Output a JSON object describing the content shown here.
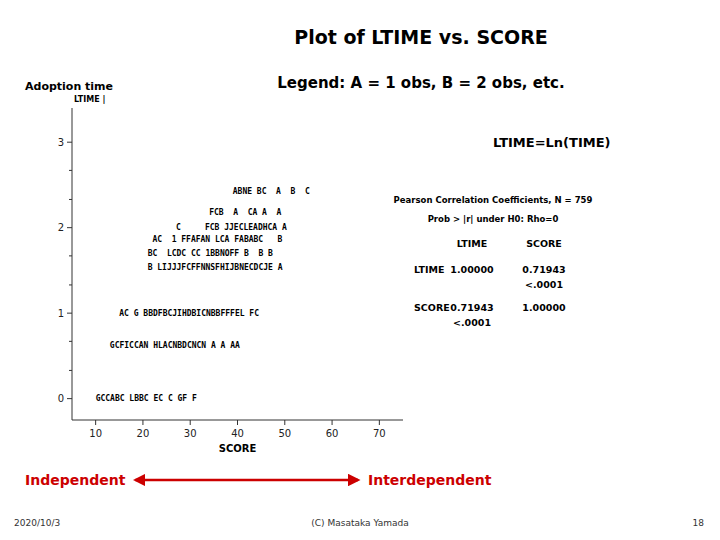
{
  "chart_data": {
    "type": "scatter",
    "title": "Plot of LTIME  vs.  SCORE",
    "subtitle": "Legend: A = 1 obs, B = 2 obs, etc.",
    "left_label": "Adoption time",
    "ylabel": "LTIME |",
    "xlabel": "SCORE",
    "xlim": [
      5,
      75
    ],
    "ylim": [
      -0.25,
      3.4
    ],
    "xticks": [
      10,
      20,
      30,
      40,
      50,
      60,
      70
    ],
    "yticks": [
      0,
      1,
      2,
      3
    ],
    "ytick_minor": [
      0.33,
      0.67,
      1.33,
      1.67,
      2.33,
      2.67
    ],
    "x": [
      10,
      13,
      15,
      21,
      21,
      22,
      27,
      34,
      39
    ],
    "values": [
      0.0,
      0.62,
      1.0,
      1.53,
      1.7,
      1.86,
      2.0,
      2.18,
      2.42
    ],
    "labels": [
      "GCCABC LBBC EC C GF F",
      "GCFICCAN HLACNBDCNCN A A AA",
      "AC G BBDFBCJIHDBICNBBFFFEL FC",
      "B LIJJJFCFFNNSFHIJBNECDCJE A",
      "BC  LCDC CC 1BBNOFF B  B B",
      "AC  1 FFAFAN LCA FABABC   B",
      "C     FCB JJECLEADHCA A",
      "FCB  A  CA A  A",
      "ABNE BC  A  B  C"
    ],
    "annotation": "LTIME=Ln(TIME)",
    "correlation": {
      "title": "Pearson Correlation Coefficients, N = 759",
      "subtitle": "Prob > |r| under H0: Rho=0",
      "columns": [
        "LTIME",
        "SCORE"
      ],
      "rows": [
        {
          "name": "LTIME",
          "cells": [
            {
              "r": "1.00000"
            },
            {
              "r": "0.71943",
              "p": "<.0001"
            }
          ]
        },
        {
          "name": "SCORE",
          "cells": [
            {
              "r": "0.71943",
              "p": "<.0001"
            },
            {
              "r": "1.00000"
            }
          ]
        }
      ]
    },
    "arrow": {
      "left": "Independent",
      "right": "Interdependent",
      "color": "#cc0000"
    },
    "footer": {
      "left": "2020/10/3",
      "center": "(C) Masataka Yamada",
      "right": "18"
    }
  }
}
